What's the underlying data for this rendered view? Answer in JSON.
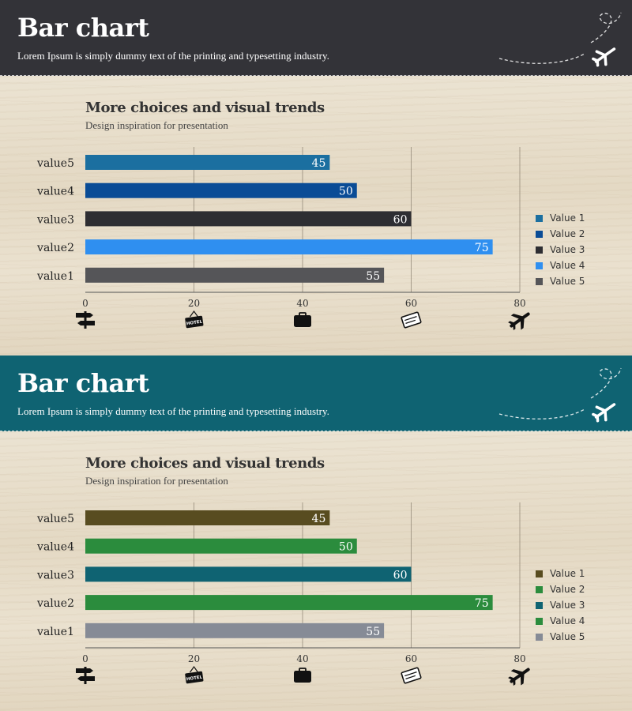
{
  "panels": [
    {
      "header_color": "#333338",
      "title": "Bar chart",
      "subtitle": "Lorem Ipsum is simply dummy text of the printing and typesetting industry.",
      "chart_title": "More choices and visual trends",
      "chart_subtitle": "Design inspiration for presentation",
      "legend": [
        {
          "label": "Value 1",
          "color": "#1b6fa0"
        },
        {
          "label": "Value 2",
          "color": "#0a4c96"
        },
        {
          "label": "Value 3",
          "color": "#2e2e32"
        },
        {
          "label": "Value 4",
          "color": "#2f8ff0"
        },
        {
          "label": "Value 5",
          "color": "#555558"
        }
      ],
      "icons": [
        "signpost-icon",
        "hotel-sign-icon",
        "suitcase-icon",
        "ticket-icon",
        "airplane-icon"
      ]
    },
    {
      "header_color": "#0f6372",
      "title": "Bar chart",
      "subtitle": "Lorem Ipsum is simply dummy text of the printing and typesetting industry.",
      "chart_title": "More choices and visual trends",
      "chart_subtitle": "Design inspiration for presentation",
      "legend": [
        {
          "label": "Value 1",
          "color": "#584c20"
        },
        {
          "label": "Value 2",
          "color": "#2b8c3d"
        },
        {
          "label": "Value 3",
          "color": "#0f6372"
        },
        {
          "label": "Value 4",
          "color": "#2b8c3d"
        },
        {
          "label": "Value 5",
          "color": "#868b96"
        }
      ],
      "icons": [
        "signpost-icon",
        "hotel-sign-icon",
        "suitcase-icon",
        "ticket-icon",
        "airplane-icon"
      ]
    }
  ],
  "chart_data": [
    {
      "type": "bar",
      "orientation": "horizontal",
      "title": "More choices and visual trends",
      "subtitle": "Design inspiration for presentation",
      "categories": [
        "value5",
        "value4",
        "value3",
        "value2",
        "value1"
      ],
      "values": [
        45,
        50,
        60,
        75,
        55
      ],
      "colors": [
        "#1b6fa0",
        "#0a4c96",
        "#2e2e32",
        "#2f8ff0",
        "#555558"
      ],
      "xlim": [
        0,
        80
      ],
      "xticks": [
        0,
        20,
        40,
        60,
        80
      ],
      "grid": true,
      "legend_position": "right"
    },
    {
      "type": "bar",
      "orientation": "horizontal",
      "title": "More choices and visual trends",
      "subtitle": "Design inspiration for presentation",
      "categories": [
        "value5",
        "value4",
        "value3",
        "value2",
        "value1"
      ],
      "values": [
        45,
        50,
        60,
        75,
        55
      ],
      "colors": [
        "#584c20",
        "#2b8c3d",
        "#0f6372",
        "#2b8c3d",
        "#868b96"
      ],
      "xlim": [
        0,
        80
      ],
      "xticks": [
        0,
        20,
        40,
        60,
        80
      ],
      "grid": true,
      "legend_position": "right"
    }
  ]
}
